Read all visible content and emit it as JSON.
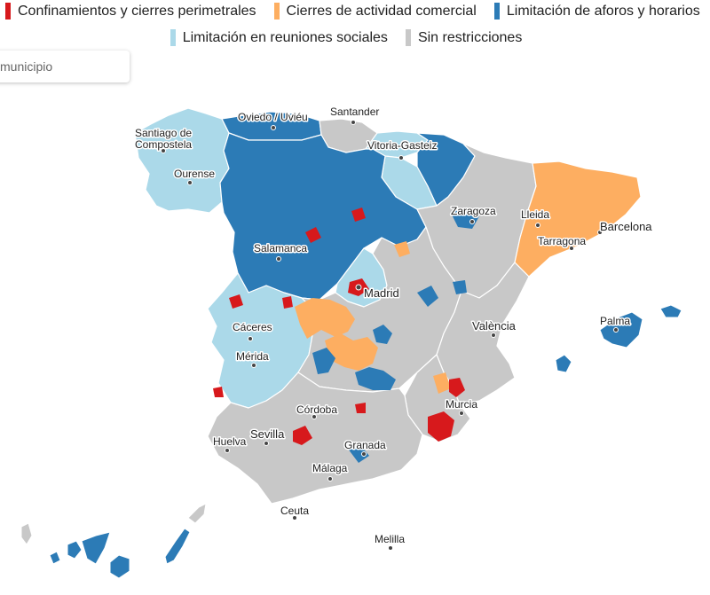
{
  "legend": {
    "items": [
      {
        "label": "Confinamientos y cierres perimetrales",
        "color": "#d7191c"
      },
      {
        "label": "Cierres de actividad comercial",
        "color": "#fdae61"
      },
      {
        "label": "Limitación de aforos y horarios",
        "color": "#2c7bb6"
      },
      {
        "label": "Limitación en reuniones sociales",
        "color": "#abd9e9"
      },
      {
        "label": "Sin restricciones",
        "color": "#c8c8c8"
      }
    ]
  },
  "search": {
    "placeholder": "municipio"
  },
  "colors": {
    "confinement": "#d7191c",
    "commercial": "#fdae61",
    "capacity": "#2c7bb6",
    "social": "#abd9e9",
    "none": "#c8c8c8"
  },
  "cities": {
    "oviedo": "Oviedo / Uviéu",
    "santander": "Santander",
    "santiago_1": "Santiago de",
    "santiago_2": "Compostela",
    "vitoria": "Vitoria-Gasteiz",
    "ourense": "Ourense",
    "zaragoza": "Zaragoza",
    "lleida": "Lleida",
    "barcelona": "Barcelona",
    "tarragona": "Tarragona",
    "salamanca": "Salamanca",
    "madrid": "Madrid",
    "palma": "Palma",
    "valencia": "València",
    "caceres": "Cáceres",
    "merida": "Mérida",
    "murcia": "Murcia",
    "cordoba": "Córdoba",
    "sevilla": "Sevilla",
    "huelva": "Huelva",
    "granada": "Granada",
    "malaga": "Málaga",
    "ceuta": "Ceuta",
    "melilla": "Melilla"
  }
}
